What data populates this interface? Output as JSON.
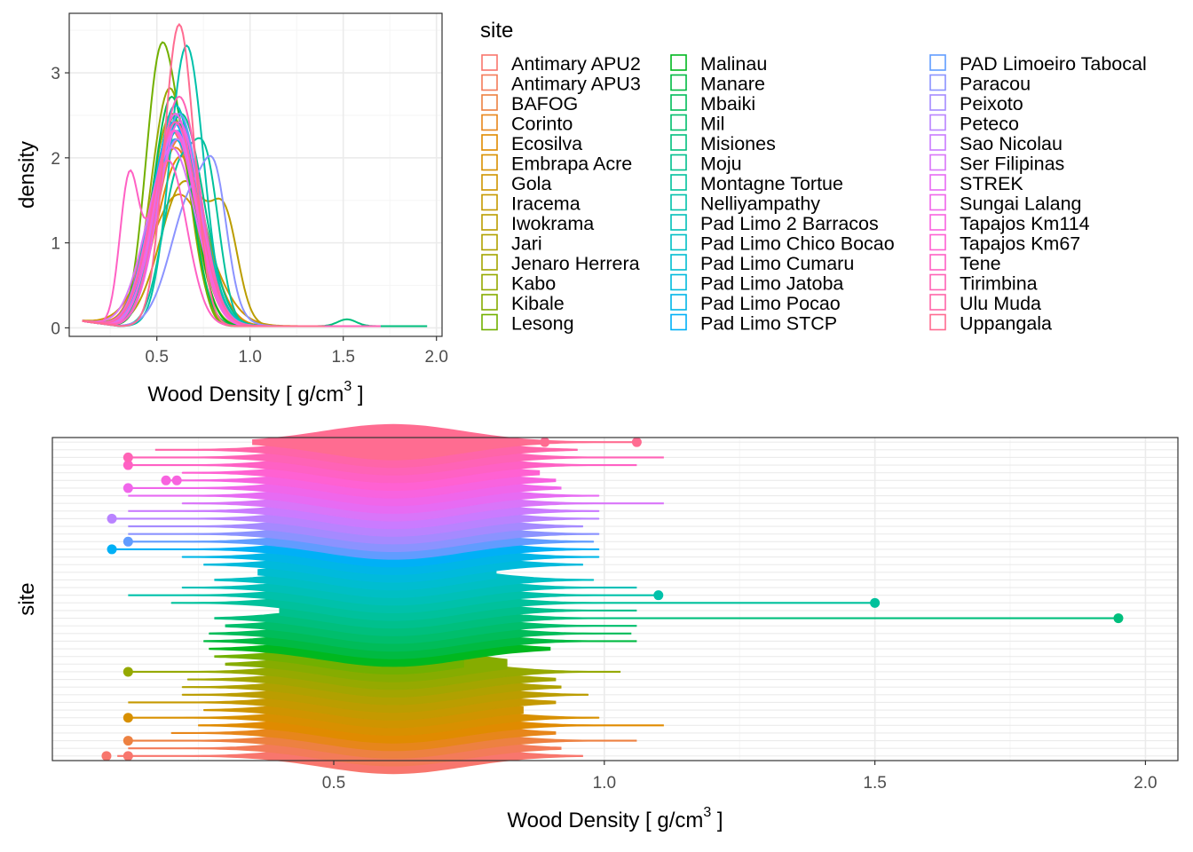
{
  "colors": {
    "panel_border": "#333333",
    "grid_major": "#ebebeb",
    "grid_minor": "#f5f5f5",
    "axis_text": "#4d4d4d",
    "title_text": "#000000"
  },
  "legend": {
    "title": "site",
    "sites": [
      "Antimary APU2",
      "Antimary APU3",
      "BAFOG",
      "Corinto",
      "Ecosilva",
      "Embrapa Acre",
      "Gola",
      "Iracema",
      "Iwokrama",
      "Jari",
      "Jenaro Herrera",
      "Kabo",
      "Kibale",
      "Lesong",
      "Malinau",
      "Manare",
      "Mbaiki",
      "Mil",
      "Misiones",
      "Moju",
      "Montagne Tortue",
      "Nelliyampathy",
      "Pad Limo 2 Barracos",
      "Pad Limo Chico Bocao",
      "Pad Limo Cumaru",
      "Pad Limo Jatoba",
      "Pad Limo Pocao",
      "Pad Limo STCP",
      "PAD Limoeiro Tabocal",
      "Paracou",
      "Peixoto",
      "Peteco",
      "Sao Nicolau",
      "Ser Filipinas",
      "STREK",
      "Sungai Lalang",
      "Tapajos Km114",
      "Tapajos Km67",
      "Tene",
      "Tirimbina",
      "Ulu Muda",
      "Uppangala"
    ],
    "colors": [
      "#F8766D",
      "#F37B59",
      "#ED8141",
      "#E7861B",
      "#E08B00",
      "#D89000",
      "#CF9400",
      "#C59900",
      "#BB9D00",
      "#B0A100",
      "#A3A500",
      "#95A900",
      "#86AC00",
      "#72B000",
      "#00B81F",
      "#00BA42",
      "#00BC59",
      "#00BE6C",
      "#00BF7D",
      "#00C08D",
      "#00C19C",
      "#00C1AA",
      "#00C0B8",
      "#00BFC4",
      "#00BDD0",
      "#00BADC",
      "#00B6E7",
      "#00B0F6",
      "#619CFF",
      "#8B93FF",
      "#A58AFF",
      "#B983FF",
      "#CA7BFF",
      "#D975F9",
      "#E76BF3",
      "#F066EA",
      "#F863DF",
      "#FF61D2",
      "#FF61C4",
      "#FF63B6",
      "#FF65A8",
      "#FF6C91"
    ]
  },
  "chart_data": [
    {
      "type": "line",
      "subtype": "density",
      "xlabel": "Wood Density [ g/cm",
      "xlabel_sup": "3",
      "xlabel_end": " ]",
      "ylabel": "density",
      "xlim": [
        0.03,
        2.03
      ],
      "ylim": [
        -0.1,
        3.7
      ],
      "xticks": [
        0.5,
        1.0,
        1.5,
        2.0
      ],
      "xtick_labels": [
        "0.5",
        "1.0",
        "1.5",
        "2.0"
      ],
      "yticks": [
        0,
        1,
        2,
        3
      ],
      "ytick_labels": [
        "0",
        "1",
        "2",
        "3"
      ],
      "grid": true,
      "legend_position": "right",
      "curves": [
        {
          "site": "Antimary APU2",
          "peaks": [
            [
              0.58,
              2.3,
              0.12
            ]
          ]
        },
        {
          "site": "Antimary APU3",
          "peaks": [
            [
              0.6,
              2.6,
              0.11
            ]
          ]
        },
        {
          "site": "BAFOG",
          "peaks": [
            [
              0.62,
              2.2,
              0.12
            ]
          ]
        },
        {
          "site": "Corinto",
          "peaks": [
            [
              0.6,
              2.1,
              0.13
            ]
          ]
        },
        {
          "site": "Ecosilva",
          "peaks": [
            [
              0.63,
              2.0,
              0.13
            ]
          ]
        },
        {
          "site": "Embrapa Acre",
          "peaks": [
            [
              0.6,
              2.4,
              0.12
            ]
          ]
        },
        {
          "site": "Gola",
          "peaks": [
            [
              0.62,
              1.55,
              0.16
            ]
          ]
        },
        {
          "site": "Iracema",
          "peaks": [
            [
              0.6,
              2.2,
              0.12
            ]
          ]
        },
        {
          "site": "Iwokrama",
          "peaks": [
            [
              0.65,
              1.7,
              0.13
            ],
            [
              0.87,
              1.0,
              0.07
            ]
          ]
        },
        {
          "site": "Jari",
          "peaks": [
            [
              0.6,
              2.3,
              0.12
            ]
          ]
        },
        {
          "site": "Jenaro Herrera",
          "peaks": [
            [
              0.58,
              2.5,
              0.11
            ]
          ]
        },
        {
          "site": "Kabo",
          "peaks": [
            [
              0.57,
              2.8,
              0.1
            ]
          ]
        },
        {
          "site": "Kibale",
          "peaks": [
            [
              0.6,
              2.5,
              0.1
            ]
          ]
        },
        {
          "site": "Lesong",
          "peaks": [
            [
              0.52,
              3.15,
              0.08
            ],
            [
              0.66,
              1.2,
              0.07
            ]
          ]
        },
        {
          "site": "Malinau",
          "peaks": [
            [
              0.6,
              2.5,
              0.1
            ]
          ]
        },
        {
          "site": "Manare",
          "peaks": [
            [
              0.6,
              2.6,
              0.11
            ]
          ]
        },
        {
          "site": "Mbaiki",
          "peaks": [
            [
              0.58,
              2.7,
              0.1
            ]
          ]
        },
        {
          "site": "Mil",
          "peaks": [
            [
              0.61,
              2.4,
              0.11
            ]
          ]
        },
        {
          "site": "Misiones",
          "peaks": [
            [
              0.6,
              2.3,
              0.12
            ],
            [
              1.52,
              0.08,
              0.05
            ]
          ]
        },
        {
          "site": "Moju",
          "peaks": [
            [
              0.63,
              2.5,
              0.12
            ]
          ]
        },
        {
          "site": "Montagne Tortue",
          "peaks": [
            [
              0.62,
              1.8,
              0.09
            ],
            [
              0.77,
              1.6,
              0.07
            ]
          ]
        },
        {
          "site": "Nelliyampathy",
          "peaks": [
            [
              0.66,
              3.3,
              0.09
            ]
          ]
        },
        {
          "site": "Pad Limo 2 Barracos",
          "peaks": [
            [
              0.62,
              2.4,
              0.12
            ]
          ]
        },
        {
          "site": "Pad Limo Chico Bocao",
          "peaks": [
            [
              0.6,
              2.6,
              0.11
            ]
          ]
        },
        {
          "site": "Pad Limo Cumaru",
          "peaks": [
            [
              0.61,
              2.3,
              0.12
            ]
          ]
        },
        {
          "site": "Pad Limo Jatoba",
          "peaks": [
            [
              0.6,
              2.5,
              0.11
            ]
          ]
        },
        {
          "site": "Pad Limo Pocao",
          "peaks": [
            [
              0.6,
              2.2,
              0.12
            ]
          ]
        },
        {
          "site": "Pad Limo STCP",
          "peaks": [
            [
              0.59,
              2.4,
              0.12
            ]
          ]
        },
        {
          "site": "PAD Limoeiro Tabocal",
          "peaks": [
            [
              0.62,
              2.5,
              0.11
            ]
          ]
        },
        {
          "site": "Paracou",
          "peaks": [
            [
              0.7,
              1.6,
              0.12
            ],
            [
              0.82,
              0.9,
              0.06
            ]
          ]
        },
        {
          "site": "Peixoto",
          "peaks": [
            [
              0.6,
              2.3,
              0.12
            ]
          ]
        },
        {
          "site": "Peteco",
          "peaks": [
            [
              0.61,
              2.2,
              0.12
            ]
          ]
        },
        {
          "site": "Sao Nicolau",
          "peaks": [
            [
              0.6,
              2.4,
              0.11
            ]
          ]
        },
        {
          "site": "Ser Filipinas",
          "peaks": [
            [
              0.58,
              2.1,
              0.13
            ]
          ]
        },
        {
          "site": "STREK",
          "peaks": [
            [
              0.6,
              2.3,
              0.12
            ]
          ]
        },
        {
          "site": "Sungai Lalang",
          "peaks": [
            [
              0.62,
              2.4,
              0.11
            ]
          ]
        },
        {
          "site": "Tapajos Km114",
          "peaks": [
            [
              0.6,
              2.5,
              0.11
            ]
          ]
        },
        {
          "site": "Tapajos Km67",
          "peaks": [
            [
              0.59,
              2.3,
              0.12
            ]
          ]
        },
        {
          "site": "Tene",
          "peaks": [
            [
              0.35,
              1.6,
              0.05
            ],
            [
              0.56,
              1.95,
              0.1
            ]
          ]
        },
        {
          "site": "Tirimbina",
          "peaks": [
            [
              0.62,
              2.7,
              0.11
            ]
          ]
        },
        {
          "site": "Ulu Muda",
          "peaks": [
            [
              0.6,
              2.4,
              0.12
            ]
          ]
        },
        {
          "site": "Uppangala",
          "peaks": [
            [
              0.62,
              3.55,
              0.08
            ]
          ]
        }
      ]
    },
    {
      "type": "violin",
      "xlabel": "Wood Density [ g/cm",
      "xlabel_sup": "3",
      "xlabel_end": " ]",
      "ylabel": "site",
      "xlim": [
        -0.02,
        2.06
      ],
      "xticks": [
        0.5,
        1.0,
        1.5,
        2.0
      ],
      "xtick_labels": [
        "0.5",
        "1.0",
        "1.5",
        "2.0"
      ],
      "grid": true,
      "order": "bottom-to-top",
      "violins": [
        {
          "site": "Antimary APU2",
          "min": 0.1,
          "max": 0.96,
          "outliers": [
            0.08,
            0.12
          ]
        },
        {
          "site": "Antimary APU3",
          "min": 0.12,
          "max": 0.92,
          "outliers": []
        },
        {
          "site": "BAFOG",
          "min": 0.12,
          "max": 1.06,
          "outliers": [
            0.12
          ]
        },
        {
          "site": "Corinto",
          "min": 0.2,
          "max": 0.91,
          "outliers": []
        },
        {
          "site": "Ecosilva",
          "min": 0.25,
          "max": 1.11,
          "outliers": []
        },
        {
          "site": "Embrapa Acre",
          "min": 0.12,
          "max": 0.99,
          "outliers": [
            0.12
          ]
        },
        {
          "site": "Gola",
          "min": 0.26,
          "max": 0.85,
          "outliers": []
        },
        {
          "site": "Iracema",
          "min": 0.12,
          "max": 0.91,
          "outliers": []
        },
        {
          "site": "Iwokrama",
          "min": 0.22,
          "max": 0.97,
          "outliers": []
        },
        {
          "site": "Jari",
          "min": 0.22,
          "max": 0.92,
          "outliers": []
        },
        {
          "site": "Jenaro Herrera",
          "min": 0.23,
          "max": 0.91,
          "outliers": []
        },
        {
          "site": "Kabo",
          "min": 0.12,
          "max": 1.03,
          "outliers": [
            0.12
          ]
        },
        {
          "site": "Kibale",
          "min": 0.3,
          "max": 0.82,
          "outliers": []
        },
        {
          "site": "Lesong",
          "min": 0.28,
          "max": 0.74,
          "outliers": []
        },
        {
          "site": "Malinau",
          "min": 0.27,
          "max": 0.9,
          "outliers": []
        },
        {
          "site": "Manare",
          "min": 0.26,
          "max": 1.06,
          "outliers": []
        },
        {
          "site": "Mbaiki",
          "min": 0.27,
          "max": 1.05,
          "outliers": []
        },
        {
          "site": "Mil",
          "min": 0.3,
          "max": 1.06,
          "outliers": []
        },
        {
          "site": "Misiones",
          "min": 0.28,
          "max": 1.95,
          "outliers": [
            1.95
          ]
        },
        {
          "site": "Moju",
          "min": 0.4,
          "max": 1.06,
          "outliers": []
        },
        {
          "site": "Montagne Tortue",
          "min": 0.2,
          "max": 1.5,
          "outliers": [
            1.5
          ]
        },
        {
          "site": "Nelliyampathy",
          "min": 0.12,
          "max": 1.1,
          "outliers": [
            1.1
          ]
        },
        {
          "site": "Pad Limo 2 Barracos",
          "min": 0.22,
          "max": 1.06,
          "outliers": []
        },
        {
          "site": "Pad Limo Chico Bocao",
          "min": 0.28,
          "max": 0.98,
          "outliers": []
        },
        {
          "site": "Pad Limo Cumaru",
          "min": 0.36,
          "max": 0.8,
          "outliers": []
        },
        {
          "site": "Pad Limo Jatoba",
          "min": 0.26,
          "max": 0.96,
          "outliers": []
        },
        {
          "site": "Pad Limo Pocao",
          "min": 0.22,
          "max": 0.99,
          "outliers": []
        },
        {
          "site": "Pad Limo STCP",
          "min": 0.09,
          "max": 0.99,
          "outliers": [
            0.09
          ]
        },
        {
          "site": "PAD Limoeiro Tabocal",
          "min": 0.12,
          "max": 0.98,
          "outliers": [
            0.12
          ]
        },
        {
          "site": "Paracou",
          "min": 0.12,
          "max": 0.99,
          "outliers": []
        },
        {
          "site": "Peixoto",
          "min": 0.12,
          "max": 0.96,
          "outliers": []
        },
        {
          "site": "Peteco",
          "min": 0.09,
          "max": 0.99,
          "outliers": [
            0.09
          ]
        },
        {
          "site": "Sao Nicolau",
          "min": 0.12,
          "max": 0.99,
          "outliers": []
        },
        {
          "site": "Ser Filipinas",
          "min": 0.22,
          "max": 1.11,
          "outliers": []
        },
        {
          "site": "STREK",
          "min": 0.12,
          "max": 0.99,
          "outliers": []
        },
        {
          "site": "Sungai Lalang",
          "min": 0.12,
          "max": 0.92,
          "outliers": [
            0.12
          ]
        },
        {
          "site": "Tapajos Km114",
          "min": 0.19,
          "max": 0.91,
          "outliers": [
            0.19,
            0.21
          ]
        },
        {
          "site": "Tapajos Km67",
          "min": 0.22,
          "max": 0.88,
          "outliers": []
        },
        {
          "site": "Tene",
          "min": 0.12,
          "max": 1.06,
          "outliers": [
            0.12
          ]
        },
        {
          "site": "Tirimbina",
          "min": 0.12,
          "max": 1.11,
          "outliers": [
            0.12
          ]
        },
        {
          "site": "Ulu Muda",
          "min": 0.17,
          "max": 0.95,
          "outliers": []
        },
        {
          "site": "Uppangala",
          "min": 0.35,
          "max": 1.06,
          "outliers": [
            0.89,
            1.06
          ]
        }
      ]
    }
  ]
}
